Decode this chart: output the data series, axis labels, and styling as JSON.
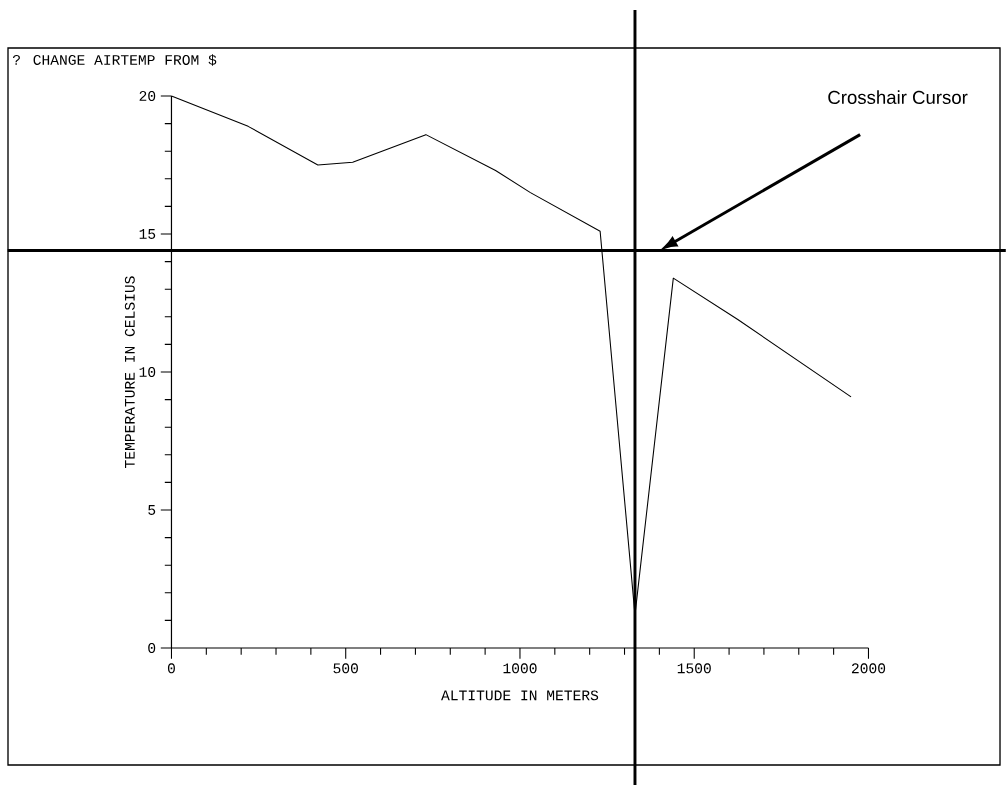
{
  "chart_data": {
    "type": "line",
    "title": "? CHANGE AIRTEMP FROM $",
    "xlabel": "ALTITUDE IN METERS",
    "ylabel": "TEMPERATURE IN CELSIUS",
    "annotations": [
      "Crosshair Cursor"
    ],
    "x": [
      0,
      220,
      420,
      520,
      730,
      930,
      1030,
      1230,
      1330,
      1440,
      1625,
      1950
    ],
    "series": [
      {
        "color": "#000000",
        "values": [
          20,
          18.9,
          17.5,
          17.6,
          18.6,
          17.3,
          16.5,
          15.1,
          1.2,
          13.4,
          11.9,
          9.1
        ]
      }
    ],
    "xlim": [
      0,
      2000
    ],
    "xticks": [
      0,
      500,
      1000,
      1500,
      2000
    ],
    "ylim": [
      0,
      20
    ],
    "yticks": [
      0,
      5,
      10,
      15,
      20
    ],
    "ref_lines": [
      {
        "axis": "x",
        "value": 1330,
        "color": "#000000"
      },
      {
        "axis": "y",
        "value": 14.4,
        "color": "#000000"
      }
    ],
    "grid": false,
    "marker": "none",
    "line_style": "solid"
  }
}
